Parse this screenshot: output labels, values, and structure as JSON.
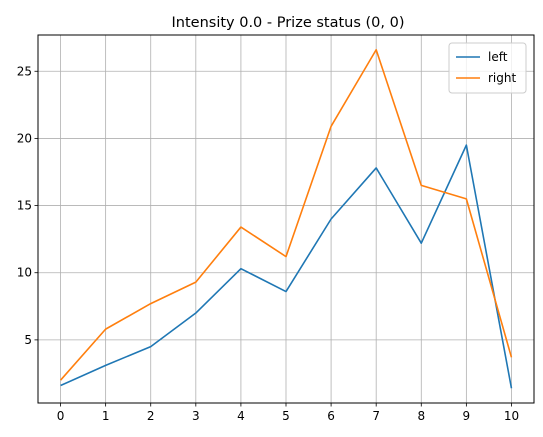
{
  "chart_data": {
    "type": "line",
    "title": "Intensity 0.0 - Prize status (0, 0)",
    "xlabel": "",
    "ylabel": "",
    "x": [
      0,
      1,
      2,
      3,
      4,
      5,
      6,
      7,
      8,
      9,
      10
    ],
    "x_ticks": [
      "0",
      "1",
      "2",
      "3",
      "4",
      "5",
      "6",
      "7",
      "8",
      "9",
      "10"
    ],
    "y_ticks": [
      "5",
      "10",
      "15",
      "20",
      "25"
    ],
    "xlim": [
      -0.5,
      10.5
    ],
    "ylim": [
      0.3,
      27.7
    ],
    "grid": true,
    "legend_position": "top-right",
    "series": [
      {
        "name": "left",
        "color": "#1f77b4",
        "values": [
          1.6,
          3.1,
          4.5,
          7.0,
          10.3,
          8.6,
          14.0,
          17.8,
          12.2,
          19.5,
          1.4
        ]
      },
      {
        "name": "right",
        "color": "#ff7f0e",
        "values": [
          2.0,
          5.8,
          7.7,
          9.3,
          13.4,
          11.2,
          20.9,
          26.6,
          16.5,
          15.5,
          3.7
        ]
      }
    ]
  }
}
